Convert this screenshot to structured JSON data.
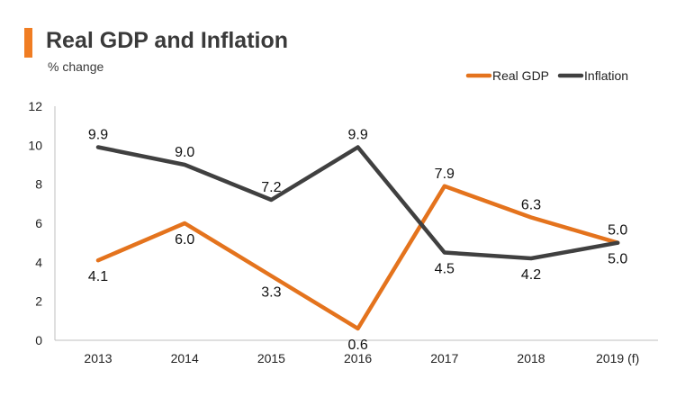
{
  "chart_data": {
    "type": "line",
    "title": "Real GDP and Inflation",
    "subtitle": "% change",
    "categories": [
      "2013",
      "2014",
      "2015",
      "2016",
      "2017",
      "2018",
      "2019 (f)"
    ],
    "series": [
      {
        "name": "Real GDP",
        "color": "#e4731d",
        "values": [
          4.1,
          6.0,
          3.3,
          0.6,
          7.9,
          6.3,
          5.0
        ],
        "labels": [
          "4.1",
          "6.0",
          "3.3",
          "0.6",
          "7.9",
          "6.3",
          "5.0"
        ]
      },
      {
        "name": "Inflation",
        "color": "#404040",
        "values": [
          9.9,
          9.0,
          7.2,
          9.9,
          4.5,
          4.2,
          5.0
        ],
        "labels": [
          "9.9",
          "9.0",
          "7.2",
          "9.9",
          "4.5",
          "4.2",
          "5.0"
        ]
      }
    ],
    "yticks": [
      "0",
      "2",
      "4",
      "6",
      "8",
      "10",
      "12"
    ],
    "ylim": [
      0,
      12
    ],
    "xlabel": "",
    "ylabel": "",
    "legend": "top-right",
    "grid": false
  },
  "colors": {
    "accent": "#f07d23",
    "text": "#3a3a3a",
    "axis": "#bfbfbf"
  }
}
